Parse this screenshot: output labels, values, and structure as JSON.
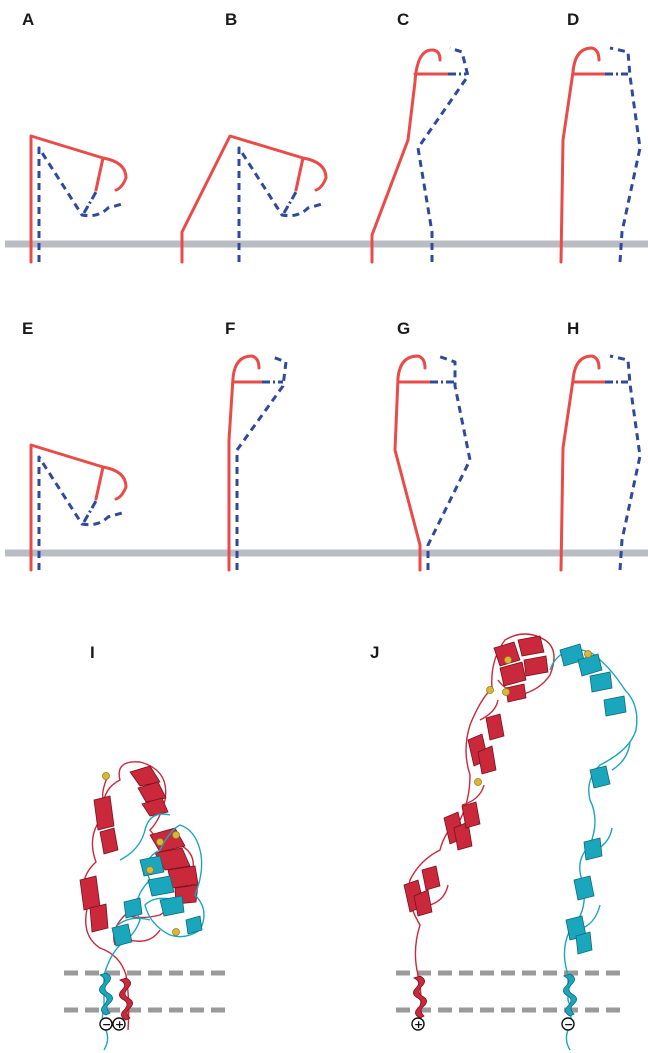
{
  "panels": {
    "A": "A",
    "B": "B",
    "C": "C",
    "D": "D",
    "E": "E",
    "F": "F",
    "G": "G",
    "H": "H",
    "I": "I",
    "J": "J"
  },
  "charges": {
    "minus": "−",
    "plus": "+"
  },
  "colors": {
    "alpha_subunit": "#ea4b48",
    "beta_subunit": "#2f4a9c",
    "alpha_structure": "#c9293a",
    "beta_structure": "#1aa7be",
    "membrane": "#b9bcc3",
    "metal_ions": "#d9b73a"
  }
}
